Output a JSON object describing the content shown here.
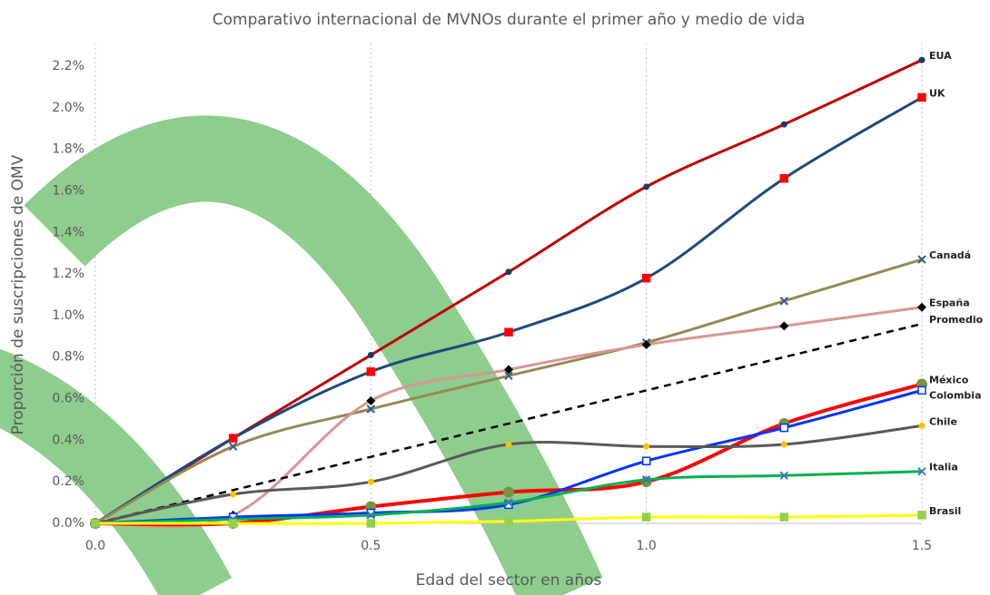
{
  "chart_data": {
    "type": "line",
    "title": "Comparativo internacional de MVNOs durante el primer año y medio de vida",
    "x_label": "Edad del sector en años",
    "y_label": "Proporción de suscripciones de OMV",
    "x": [
      0,
      0.25,
      0.5,
      0.75,
      1.0,
      1.25,
      1.5
    ],
    "xlim": [
      0,
      1.5
    ],
    "xticks": [
      {
        "value": 0,
        "label": "0.0"
      },
      0.5,
      {
        "value": 1.0,
        "label": "1.0"
      },
      1.5
    ],
    "ylim": [
      0,
      2.2
    ],
    "yticks": [
      {
        "value": 0,
        "label": "0.0%"
      },
      {
        "value": 0.2,
        "label": "0.2%"
      },
      {
        "value": 0.4,
        "label": "0.4%"
      },
      {
        "value": 0.6,
        "label": "0.6%"
      },
      {
        "value": 0.8,
        "label": "0.8%"
      },
      {
        "value": 1.0,
        "label": "1.0%"
      },
      {
        "value": 1.2,
        "label": "1.2%"
      },
      {
        "value": 1.4,
        "label": "1.4%"
      },
      {
        "value": 1.6,
        "label": "1.6%"
      },
      {
        "value": 1.8,
        "label": "1.8%"
      },
      {
        "value": 2.0,
        "label": "2.0%"
      },
      {
        "value": 2.2,
        "label": "2.2%"
      }
    ],
    "grid": "x",
    "smooth": true,
    "series": [
      {
        "name": "EUA",
        "color": "#c00000",
        "marker": "circle",
        "marker_color": "#1f3864",
        "values": [
          0,
          0.41,
          0.81,
          1.21,
          1.62,
          1.92,
          2.23
        ]
      },
      {
        "name": "UK",
        "color": "#1f497d",
        "marker": "square",
        "marker_color": "#ff0000",
        "values": [
          0,
          0.41,
          0.73,
          0.92,
          1.18,
          1.66,
          2.05
        ]
      },
      {
        "name": "Canadá",
        "color": "#948a54",
        "marker": "x",
        "marker_color": "#2e5e8c",
        "values": [
          0,
          0.37,
          0.55,
          0.71,
          0.87,
          1.07,
          1.27
        ]
      },
      {
        "name": "España",
        "color": "#d99694",
        "marker": "diamond",
        "marker_color": "#000000",
        "values": [
          0,
          0.04,
          0.59,
          0.74,
          0.86,
          0.95,
          1.04
        ]
      },
      {
        "name": "Promedio",
        "color": "#000000",
        "dashed": true,
        "marker": "none",
        "values": [
          0,
          0.16,
          0.32,
          0.48,
          0.64,
          0.8,
          0.96
        ]
      },
      {
        "name": "México",
        "color": "#ff0000",
        "width": 4,
        "marker": "circle",
        "marker_color": "#77933c",
        "values": [
          0,
          0,
          0.08,
          0.15,
          0.2,
          0.48,
          0.67
        ]
      },
      {
        "name": "Colombia",
        "color": "#0033ff",
        "marker": "square",
        "marker_color": "#ffd966",
        "values": [
          0,
          0.03,
          0.05,
          0.09,
          0.3,
          0.46,
          0.64
        ]
      },
      {
        "name": "Chile",
        "color": "#595959",
        "marker": "circle",
        "marker_color": "#ffc000",
        "values": [
          0,
          0.14,
          0.2,
          0.38,
          0.37,
          0.38,
          0.47
        ]
      },
      {
        "name": "Italia",
        "color": "#00b050",
        "marker": "x",
        "marker_color": "#4472c4",
        "values": [
          0,
          0.02,
          0.04,
          0.1,
          0.21,
          0.23,
          0.25
        ]
      },
      {
        "name": "Brasil",
        "color": "#ffff00",
        "marker": "square",
        "marker_color": "#92d050",
        "values": [
          0,
          0,
          0,
          0.01,
          0.03,
          0.03,
          0.04
        ]
      }
    ]
  }
}
